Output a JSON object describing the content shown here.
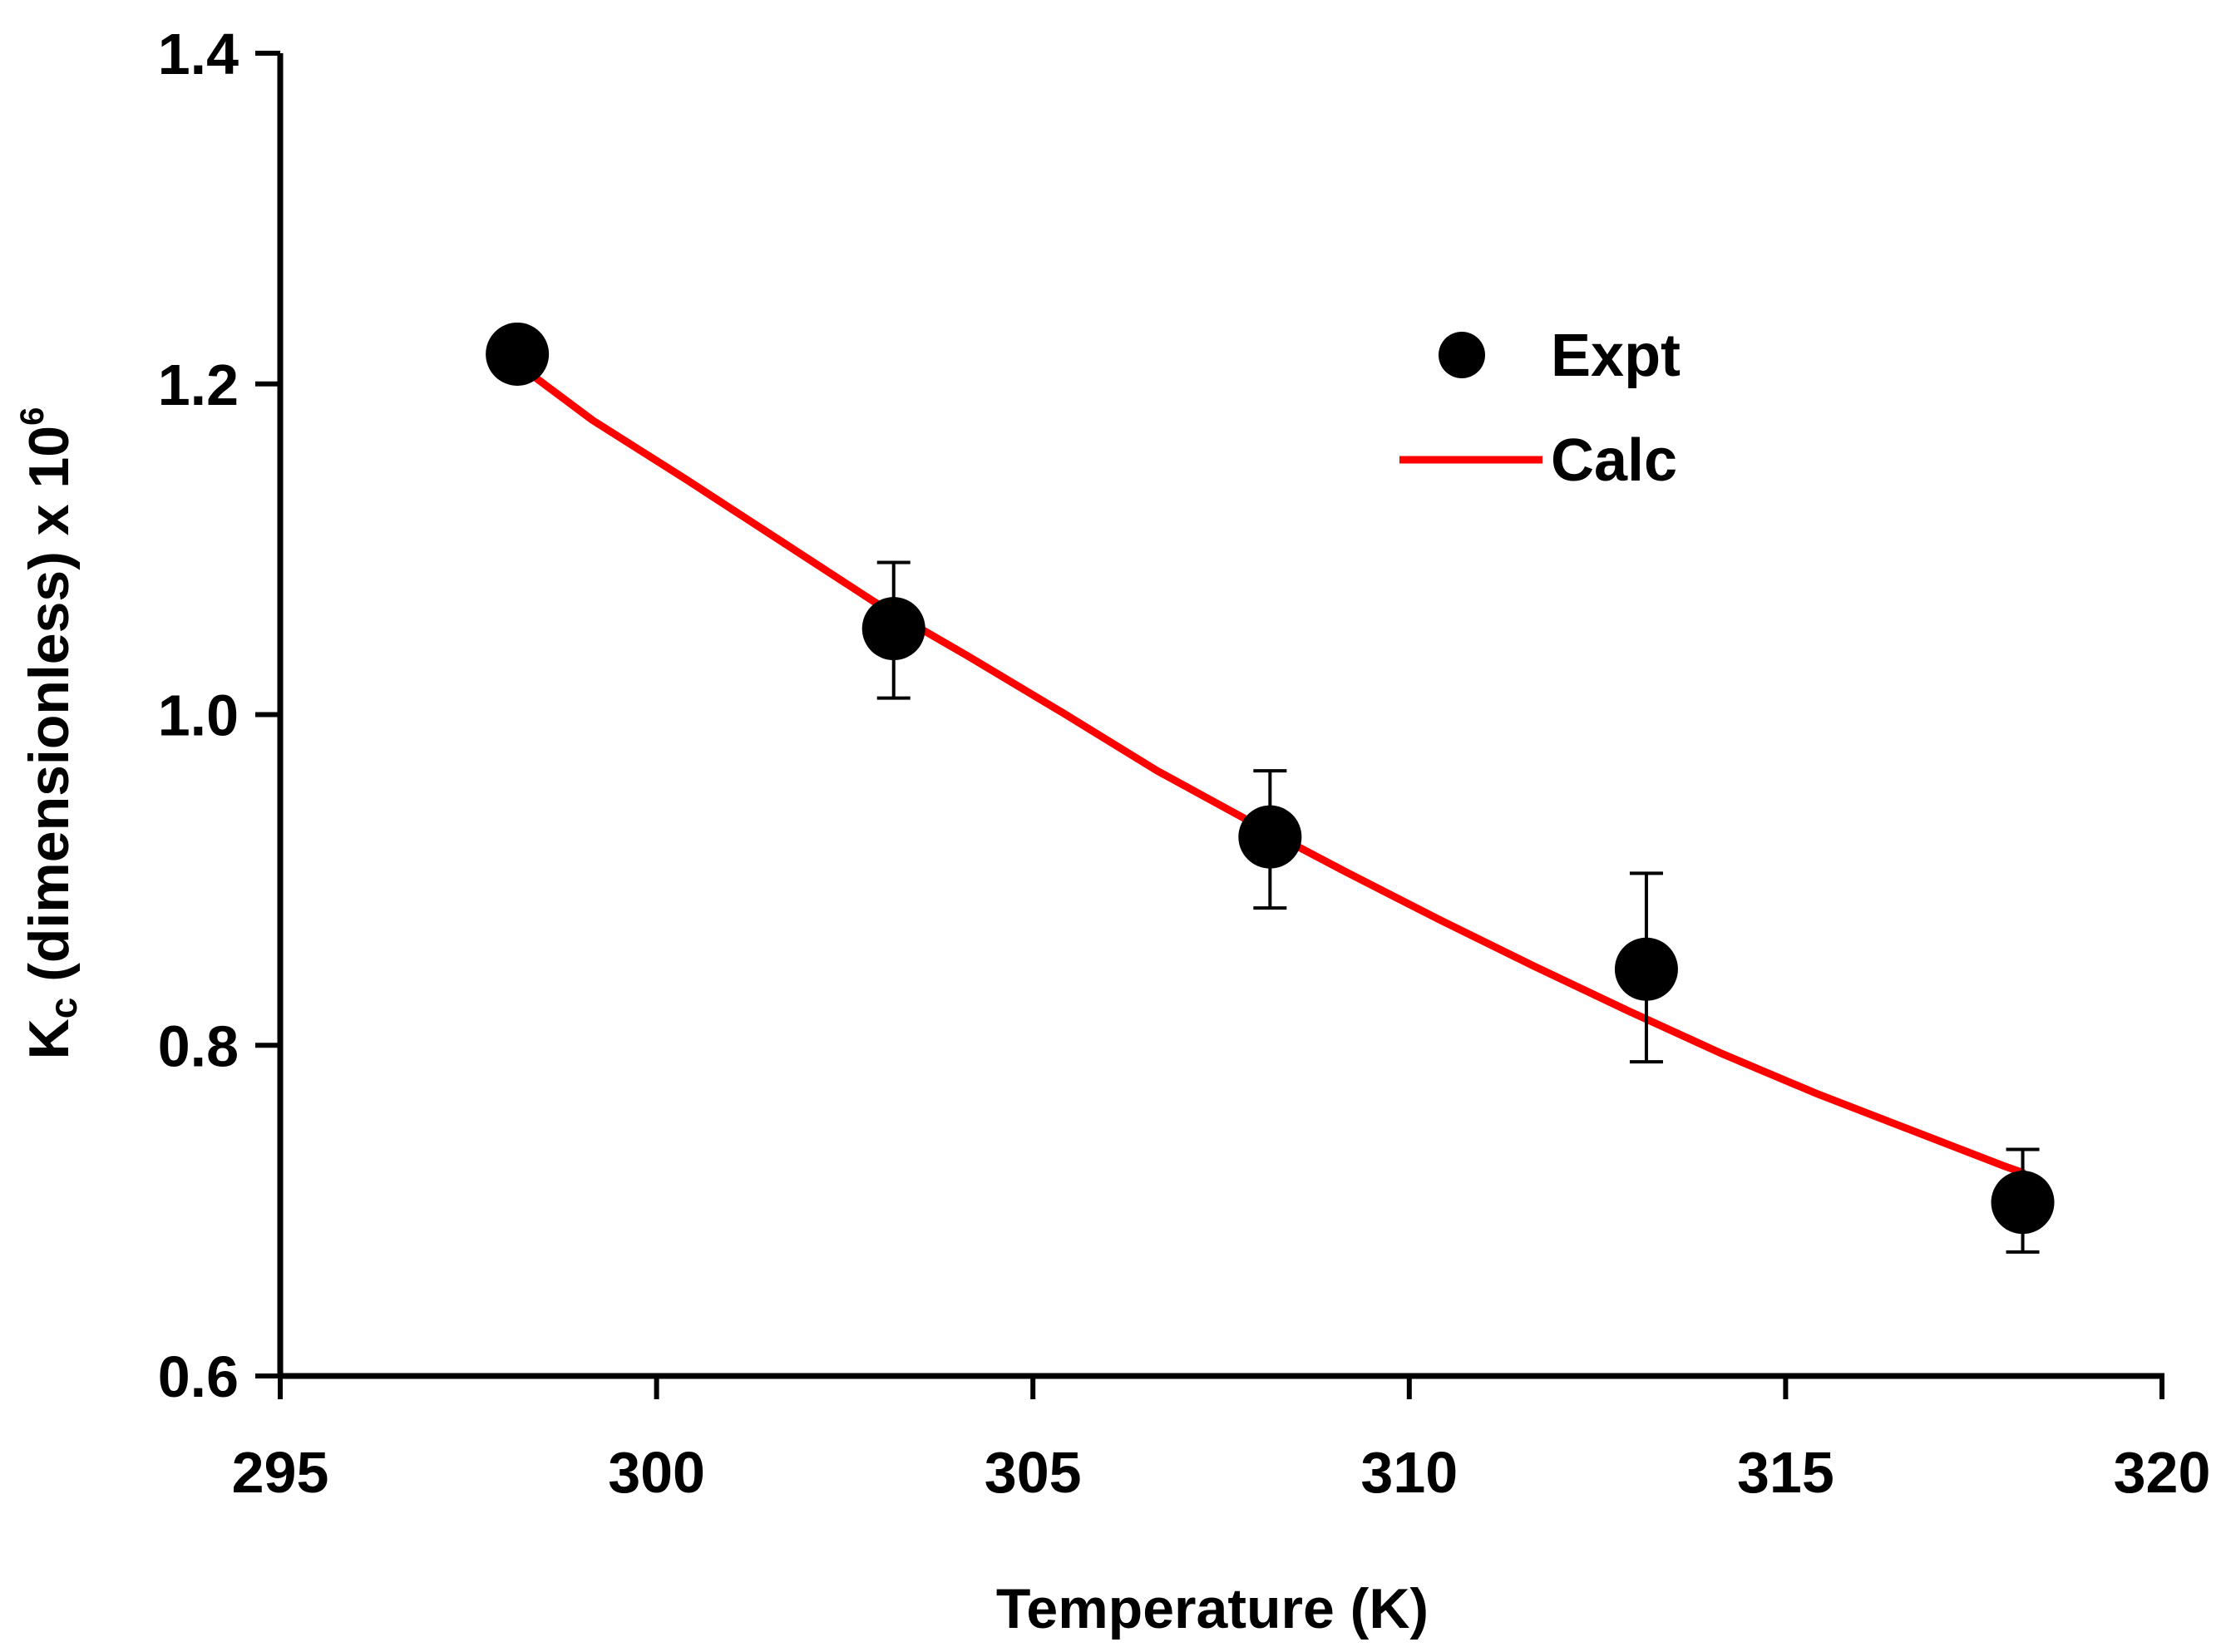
{
  "chart_data": {
    "type": "scatter",
    "xlabel": "Temperature (K)",
    "ylabel": {
      "prefix": "K",
      "subscript": "c",
      "middle": " (dimensionless) x 10",
      "superscript": "6"
    },
    "xlim": [
      295,
      320
    ],
    "ylim": [
      0.6,
      1.4
    ],
    "xticks": [
      "295",
      "300",
      "305",
      "310",
      "315",
      "320"
    ],
    "yticks": [
      "0.6",
      "0.8",
      "1.0",
      "1.2",
      "1.4"
    ],
    "grid": false,
    "legend_position": "top-right",
    "series": [
      {
        "name": "Expt",
        "kind": "markers-with-error-bars",
        "color": "#000000",
        "x": [
          298.15,
          303.15,
          308.15,
          313.15,
          318.15
        ],
        "y": [
          1.218,
          1.052,
          0.926,
          0.846,
          0.705
        ],
        "err_low": [
          0.0,
          0.042,
          0.043,
          0.056,
          0.03
        ],
        "err_high": [
          0.0,
          0.04,
          0.04,
          0.058,
          0.032
        ]
      },
      {
        "name": "Calc",
        "kind": "line",
        "color": "#ff0000",
        "x": [
          298.15,
          299.15,
          300.4,
          301.65,
          302.9,
          304.15,
          305.4,
          306.65,
          307.9,
          309.15,
          310.4,
          311.65,
          312.9,
          314.15,
          315.4,
          316.65,
          317.9,
          318.15
        ],
        "y": [
          1.212,
          1.178,
          1.142,
          1.105,
          1.068,
          1.035,
          1.001,
          0.966,
          0.935,
          0.905,
          0.876,
          0.848,
          0.821,
          0.795,
          0.771,
          0.749,
          0.727,
          0.723
        ]
      }
    ]
  }
}
